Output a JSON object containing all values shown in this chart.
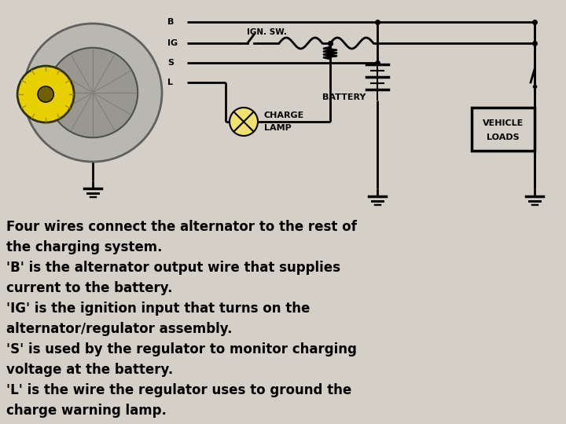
{
  "bg_color": "#d4d0c8",
  "wire_color": "#000000",
  "description_lines": [
    "Four wires connect the alternator to the rest of",
    "the charging system.",
    "'B' is the alternator output wire that supplies",
    "current to the battery.",
    "'IG' is the ignition input that turns on the",
    "alternator/regulator assembly.",
    "'S' is used by the regulator to monitor charging",
    "voltage at the battery.",
    "'L' is the wire the regulator uses to ground the",
    "charge warning lamp."
  ],
  "fig_width": 7.2,
  "fig_height": 5.4,
  "dpi": 100
}
